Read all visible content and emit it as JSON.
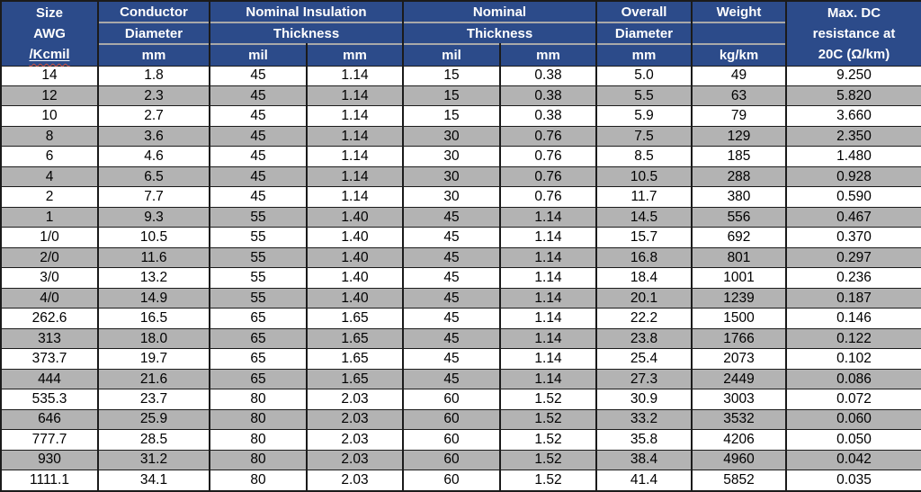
{
  "table": {
    "header": {
      "size": {
        "lines": [
          "Size",
          "AWG",
          "/Kcmil"
        ]
      },
      "conductor": {
        "line1": "Conductor",
        "line2": "Diameter",
        "unit": "mm"
      },
      "nominal_insulation": {
        "line1": "Nominal Insulation",
        "line2": "Thickness",
        "unit_mil": "mil",
        "unit_mm": "mm"
      },
      "nominal": {
        "line1": "Nominal",
        "line2": "Thickness",
        "unit_mil": "mil",
        "unit_mm": "mm"
      },
      "overall": {
        "line1": "Overall",
        "line2": "Diameter",
        "unit": "mm"
      },
      "weight": {
        "line1": "Weight",
        "line2": "",
        "unit": "kg/km"
      },
      "max_dc": {
        "lines": [
          "Max. DC",
          "resistance at",
          "20C (Ω/km)"
        ]
      }
    },
    "rows": [
      [
        "14",
        "1.8",
        "45",
        "1.14",
        "15",
        "0.38",
        "5.0",
        "49",
        "9.250"
      ],
      [
        "12",
        "2.3",
        "45",
        "1.14",
        "15",
        "0.38",
        "5.5",
        "63",
        "5.820"
      ],
      [
        "10",
        "2.7",
        "45",
        "1.14",
        "15",
        "0.38",
        "5.9",
        "79",
        "3.660"
      ],
      [
        "8",
        "3.6",
        "45",
        "1.14",
        "30",
        "0.76",
        "7.5",
        "129",
        "2.350"
      ],
      [
        "6",
        "4.6",
        "45",
        "1.14",
        "30",
        "0.76",
        "8.5",
        "185",
        "1.480"
      ],
      [
        "4",
        "6.5",
        "45",
        "1.14",
        "30",
        "0.76",
        "10.5",
        "288",
        "0.928"
      ],
      [
        "2",
        "7.7",
        "45",
        "1.14",
        "30",
        "0.76",
        "11.7",
        "380",
        "0.590"
      ],
      [
        "1",
        "9.3",
        "55",
        "1.40",
        "45",
        "1.14",
        "14.5",
        "556",
        "0.467"
      ],
      [
        "1/0",
        "10.5",
        "55",
        "1.40",
        "45",
        "1.14",
        "15.7",
        "692",
        "0.370"
      ],
      [
        "2/0",
        "11.6",
        "55",
        "1.40",
        "45",
        "1.14",
        "16.8",
        "801",
        "0.297"
      ],
      [
        "3/0",
        "13.2",
        "55",
        "1.40",
        "45",
        "1.14",
        "18.4",
        "1001",
        "0.236"
      ],
      [
        "4/0",
        "14.9",
        "55",
        "1.40",
        "45",
        "1.14",
        "20.1",
        "1239",
        "0.187"
      ],
      [
        "262.6",
        "16.5",
        "65",
        "1.65",
        "45",
        "1.14",
        "22.2",
        "1500",
        "0.146"
      ],
      [
        "313",
        "18.0",
        "65",
        "1.65",
        "45",
        "1.14",
        "23.8",
        "1766",
        "0.122"
      ],
      [
        "373.7",
        "19.7",
        "65",
        "1.65",
        "45",
        "1.14",
        "25.4",
        "2073",
        "0.102"
      ],
      [
        "444",
        "21.6",
        "65",
        "1.65",
        "45",
        "1.14",
        "27.3",
        "2449",
        "0.086"
      ],
      [
        "535.3",
        "23.7",
        "80",
        "2.03",
        "60",
        "1.52",
        "30.9",
        "3003",
        "0.072"
      ],
      [
        "646",
        "25.9",
        "80",
        "2.03",
        "60",
        "1.52",
        "33.2",
        "3532",
        "0.060"
      ],
      [
        "777.7",
        "28.5",
        "80",
        "2.03",
        "60",
        "1.52",
        "35.8",
        "4206",
        "0.050"
      ],
      [
        "930",
        "31.2",
        "80",
        "2.03",
        "60",
        "1.52",
        "38.4",
        "4960",
        "0.042"
      ],
      [
        "1111.1",
        "34.1",
        "80",
        "2.03",
        "60",
        "1.52",
        "41.4",
        "5852",
        "0.035"
      ]
    ]
  },
  "colors": {
    "header_bg": "#2c4b8a",
    "header_text": "#ffffff",
    "row_bg": "#ffffff",
    "row_alt_bg": "#b3b3b3",
    "grid_line": "#1b1b1b",
    "header_divider": "#a9a9a9",
    "spellcheck_squiggle": "#d0533f"
  }
}
